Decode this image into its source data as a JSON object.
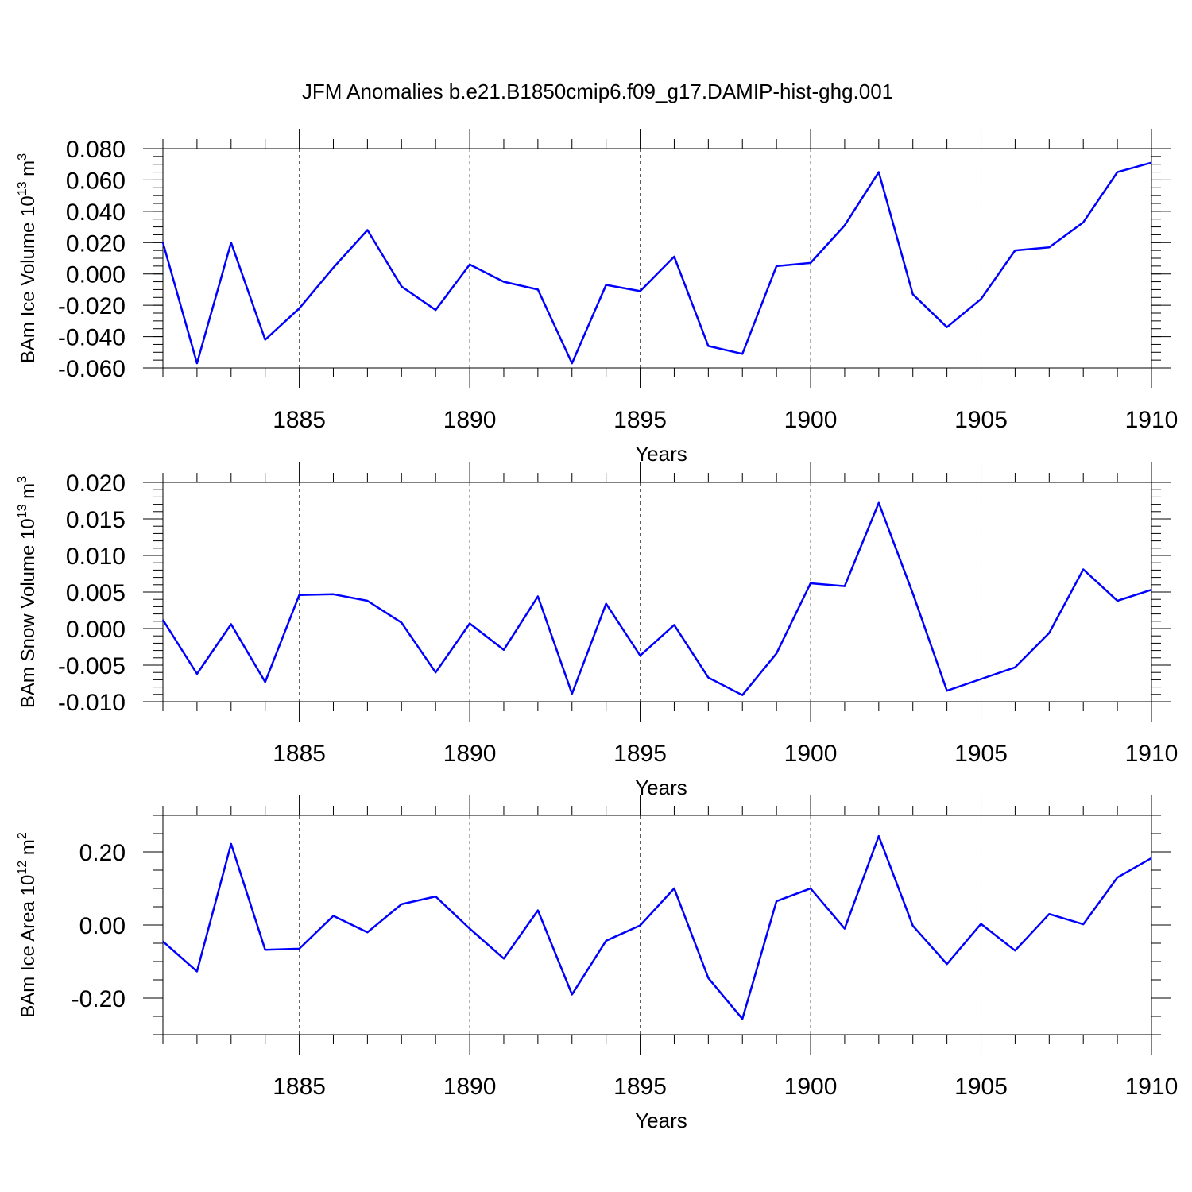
{
  "title": "JFM Anomalies b.e21.B1850cmip6.f09_g17.DAMIP-hist-ghg.001",
  "line_color": "#0000ff",
  "chart_data": [
    {
      "type": "line",
      "name": "ice-volume",
      "ylabel_main": "BAm Ice Volume 10",
      "ylabel_exp": "13",
      "ylabel_unit": " m",
      "ylabel_unit_exp": "3",
      "xlabel": "Years",
      "xlim": [
        1881,
        1910
      ],
      "ylim": [
        -0.06,
        0.08
      ],
      "yticks": [
        -0.06,
        -0.04,
        -0.02,
        0.0,
        0.02,
        0.04,
        0.06,
        0.08
      ],
      "ytick_labels": [
        "-0.060",
        "-0.040",
        "-0.020",
        "0.000",
        "0.020",
        "0.040",
        "0.060",
        "0.080"
      ],
      "yminor_step": 0.005,
      "xticks": [
        1885,
        1890,
        1895,
        1900,
        1905,
        1910
      ],
      "xtick_labels": [
        "1885",
        "1890",
        "1895",
        "1900",
        "1905",
        "1910"
      ],
      "x": [
        1881,
        1882,
        1883,
        1884,
        1885,
        1886,
        1887,
        1888,
        1889,
        1890,
        1891,
        1892,
        1893,
        1894,
        1895,
        1896,
        1897,
        1898,
        1899,
        1900,
        1901,
        1902,
        1903,
        1904,
        1905,
        1906,
        1907,
        1908,
        1909,
        1910
      ],
      "y": [
        0.02,
        -0.057,
        0.02,
        -0.042,
        -0.022,
        0.004,
        0.028,
        -0.008,
        -0.023,
        0.006,
        -0.005,
        -0.01,
        -0.057,
        -0.007,
        -0.011,
        0.011,
        -0.046,
        -0.051,
        0.005,
        0.007,
        0.031,
        0.065,
        -0.013,
        -0.034,
        -0.016,
        0.015,
        0.017,
        0.033,
        0.065,
        0.071
      ]
    },
    {
      "type": "line",
      "name": "snow-volume",
      "ylabel_main": "BAm Snow Volume 10",
      "ylabel_exp": "13",
      "ylabel_unit": " m",
      "ylabel_unit_exp": "3",
      "xlabel": "Years",
      "xlim": [
        1881,
        1910
      ],
      "ylim": [
        -0.01,
        0.02
      ],
      "yticks": [
        -0.01,
        -0.005,
        0.0,
        0.005,
        0.01,
        0.015,
        0.02
      ],
      "ytick_labels": [
        "-0.010",
        "-0.005",
        "0.000",
        "0.005",
        "0.010",
        "0.015",
        "0.020"
      ],
      "yminor_step": 0.001,
      "xticks": [
        1885,
        1890,
        1895,
        1900,
        1905,
        1910
      ],
      "xtick_labels": [
        "1885",
        "1890",
        "1895",
        "1900",
        "1905",
        "1910"
      ],
      "x": [
        1881,
        1882,
        1883,
        1884,
        1885,
        1886,
        1887,
        1888,
        1889,
        1890,
        1891,
        1892,
        1893,
        1894,
        1895,
        1896,
        1897,
        1898,
        1899,
        1900,
        1901,
        1902,
        1903,
        1904,
        1905,
        1906,
        1907,
        1908,
        1909,
        1910
      ],
      "y": [
        0.0012,
        -0.0062,
        0.0006,
        -0.0073,
        0.0046,
        0.0047,
        0.0038,
        0.0008,
        -0.006,
        0.0007,
        -0.0029,
        0.0044,
        -0.0089,
        0.0034,
        -0.0037,
        0.0005,
        -0.0067,
        -0.0091,
        -0.0034,
        0.0062,
        0.0058,
        0.0172,
        0.0048,
        -0.0085,
        -0.0069,
        -0.0053,
        -0.0006,
        0.0081,
        0.0038,
        0.0053
      ]
    },
    {
      "type": "line",
      "name": "ice-area",
      "ylabel_main": "BAm Ice Area 10",
      "ylabel_exp": "12",
      "ylabel_unit": " m",
      "ylabel_unit_exp": "2",
      "xlabel": "Years",
      "xlim": [
        1881,
        1910
      ],
      "ylim": [
        -0.3,
        0.3
      ],
      "yticks": [
        -0.2,
        0.0,
        0.2
      ],
      "ytick_labels": [
        "-0.20",
        "0.00",
        "0.20"
      ],
      "yminor_step": 0.05,
      "xticks": [
        1885,
        1890,
        1895,
        1900,
        1905,
        1910
      ],
      "xtick_labels": [
        "1885",
        "1890",
        "1895",
        "1900",
        "1905",
        "1910"
      ],
      "x": [
        1881,
        1882,
        1883,
        1884,
        1885,
        1886,
        1887,
        1888,
        1889,
        1890,
        1891,
        1892,
        1893,
        1894,
        1895,
        1896,
        1897,
        1898,
        1899,
        1900,
        1901,
        1902,
        1903,
        1904,
        1905,
        1906,
        1907,
        1908,
        1909,
        1910
      ],
      "y": [
        -0.045,
        -0.127,
        0.222,
        -0.068,
        -0.065,
        0.025,
        -0.02,
        0.057,
        0.078,
        -0.01,
        -0.092,
        0.04,
        -0.19,
        -0.043,
        -0.001,
        0.1,
        -0.145,
        -0.257,
        0.065,
        0.1,
        -0.01,
        0.243,
        -0.002,
        -0.107,
        0.003,
        -0.07,
        0.03,
        0.002,
        0.13,
        0.183
      ]
    }
  ]
}
